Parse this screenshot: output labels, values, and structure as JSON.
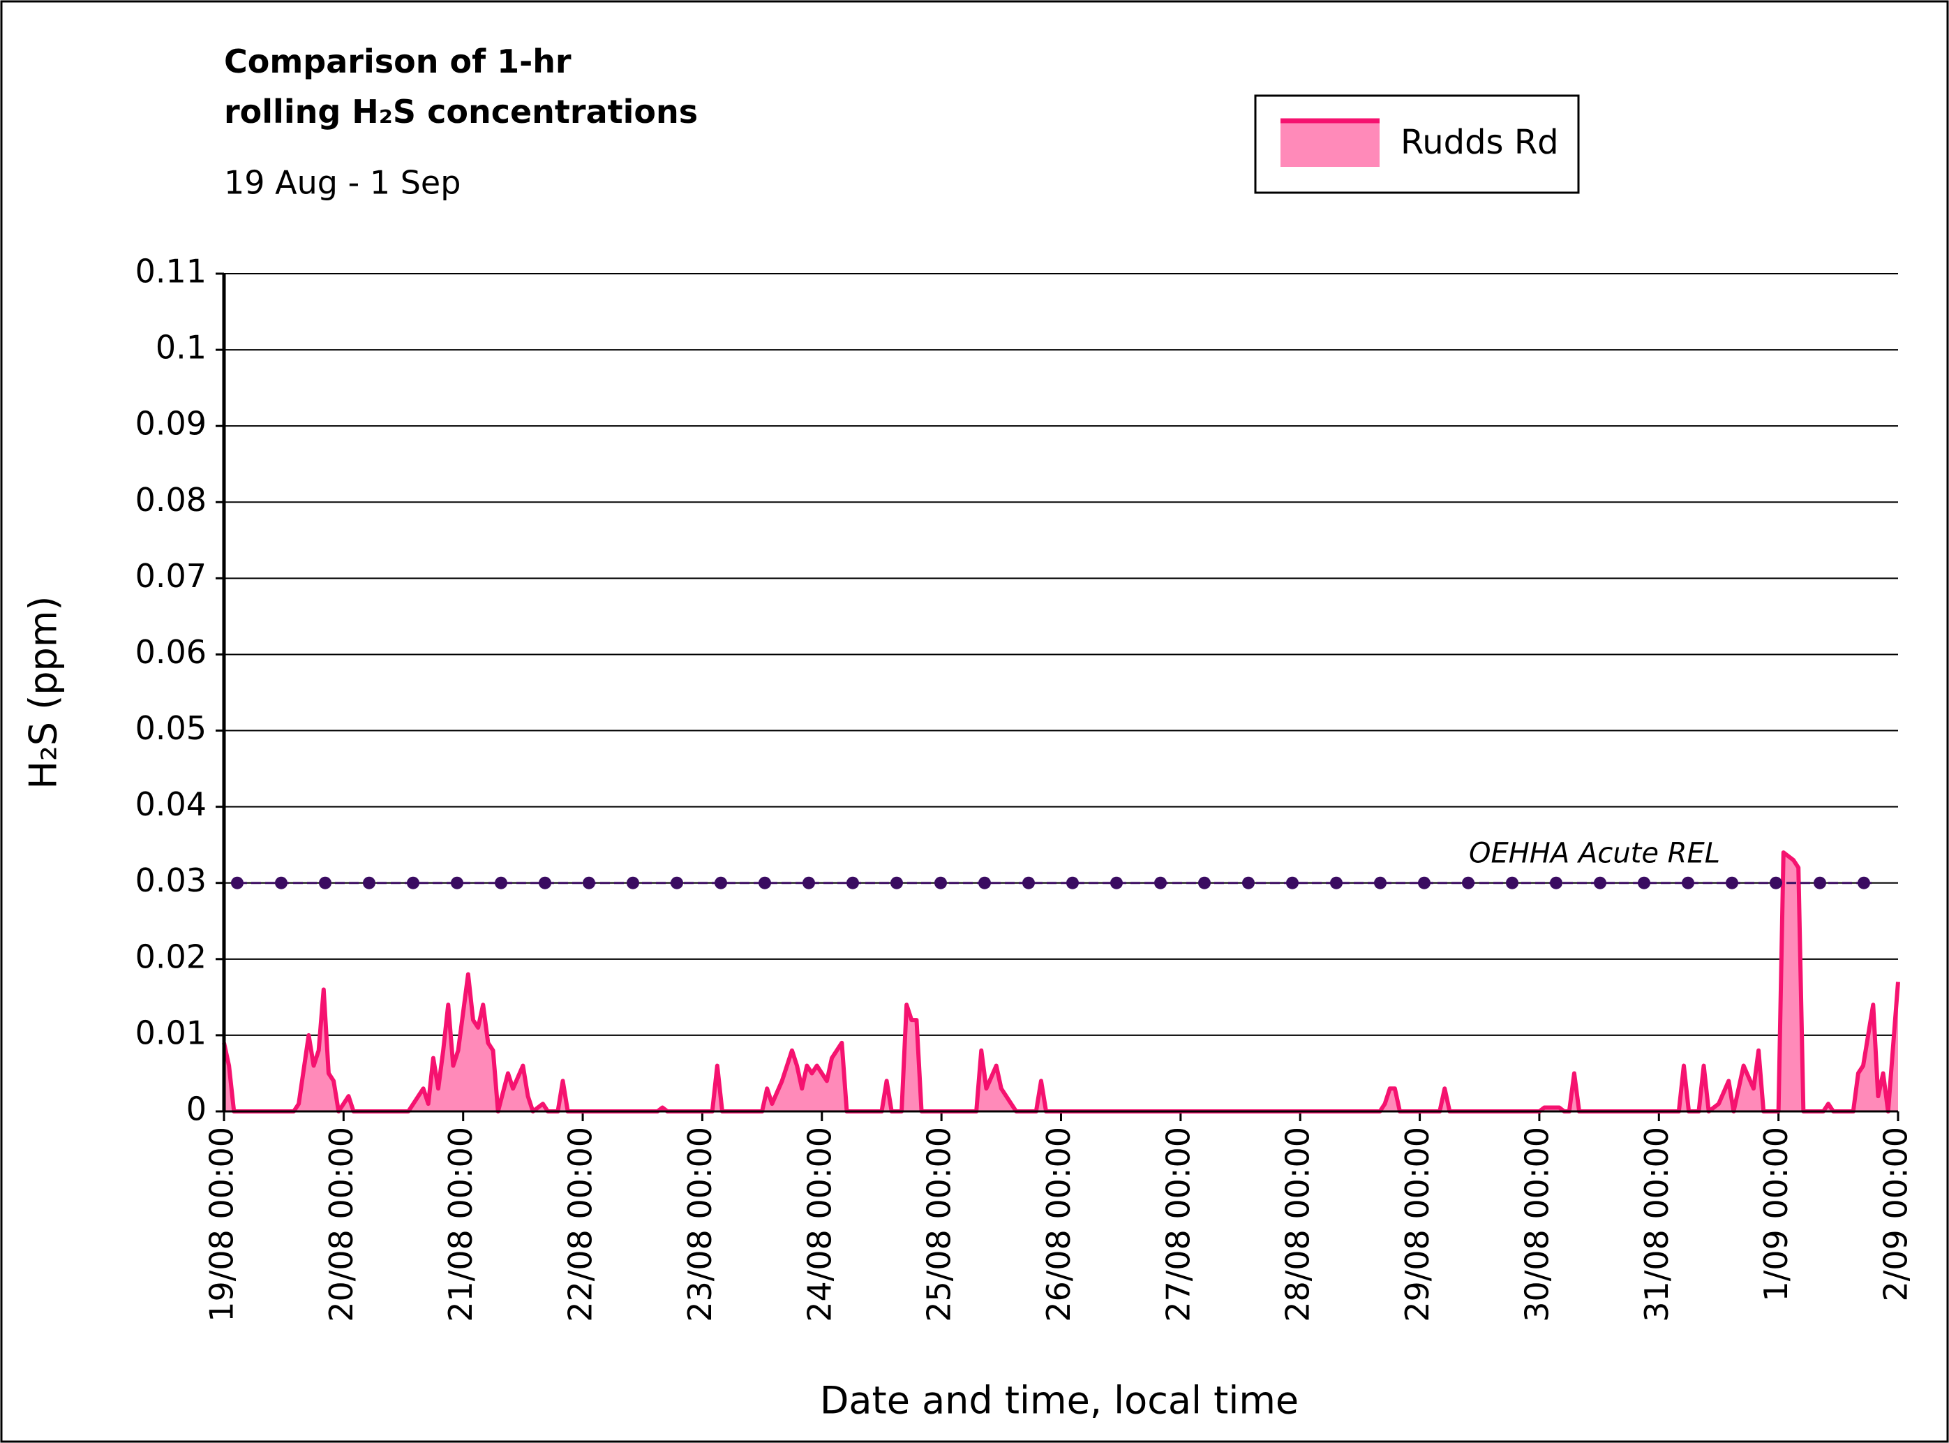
{
  "chart_data": {
    "type": "area",
    "title": "Comparison of 1-hr rolling H₂S concentrations",
    "subtitle": "19 Aug - 1 Sep",
    "x_label": "Date and time, local time",
    "y_label": "H₂S (ppm)",
    "xlim": [
      "19/08 00:00",
      "2/09 00:00"
    ],
    "xticks": [
      "19/08 00:00",
      "20/08 00:00",
      "21/08 00:00",
      "22/08 00:00",
      "23/08 00:00",
      "24/08 00:00",
      "25/08 00:00",
      "26/08 00:00",
      "27/08 00:00",
      "28/08 00:00",
      "29/08 00:00",
      "30/08 00:00",
      "31/08 00:00",
      "1/09 00:00",
      "2/09 00:00"
    ],
    "ylim": [
      0,
      0.11
    ],
    "yticks": [
      0,
      0.01,
      0.02,
      0.03,
      0.04,
      0.05,
      0.06,
      0.07,
      0.08,
      0.09,
      0.1,
      0.11
    ],
    "grid": true,
    "legend": "top-right",
    "x": [
      "19/08 00:00",
      "19/08 01:00",
      "19/08 02:00",
      "19/08 14:00",
      "19/08 15:00",
      "19/08 17:00",
      "19/08 18:00",
      "19/08 19:00",
      "19/08 20:00",
      "19/08 21:00",
      "19/08 22:00",
      "19/08 23:00",
      "20/08 01:00",
      "20/08 02:00",
      "20/08 13:00",
      "20/08 14:00",
      "20/08 16:00",
      "20/08 17:00",
      "20/08 18:00",
      "20/08 19:00",
      "20/08 20:00",
      "20/08 21:00",
      "20/08 22:00",
      "20/08 23:00",
      "21/08 01:00",
      "21/08 02:00",
      "21/08 03:00",
      "21/08 04:00",
      "21/08 05:00",
      "21/08 06:00",
      "21/08 07:00",
      "21/08 09:00",
      "21/08 10:00",
      "21/08 12:00",
      "21/08 13:00",
      "21/08 14:00",
      "21/08 16:00",
      "21/08 17:00",
      "21/08 19:00",
      "21/08 20:00",
      "21/08 21:00",
      "22/08 15:00",
      "22/08 16:00",
      "22/08 17:00",
      "23/08 02:00",
      "23/08 03:00",
      "23/08 04:00",
      "23/08 12:00",
      "23/08 13:00",
      "23/08 14:00",
      "23/08 16:00",
      "23/08 18:00",
      "23/08 19:00",
      "23/08 20:00",
      "23/08 21:00",
      "23/08 22:00",
      "23/08 23:00",
      "24/08 01:00",
      "24/08 02:00",
      "24/08 04:00",
      "24/08 05:00",
      "24/08 12:00",
      "24/08 13:00",
      "24/08 14:00",
      "24/08 16:00",
      "24/08 17:00",
      "24/08 18:00",
      "24/08 19:00",
      "24/08 20:00",
      "25/08 07:00",
      "25/08 08:00",
      "25/08 09:00",
      "25/08 11:00",
      "25/08 12:00",
      "25/08 14:00",
      "25/08 15:00",
      "25/08 19:00",
      "25/08 20:00",
      "25/08 21:00",
      "28/08 16:00",
      "28/08 17:00",
      "28/08 18:00",
      "28/08 19:00",
      "28/08 20:00",
      "29/08 04:00",
      "29/08 05:00",
      "29/08 06:00",
      "30/08 00:00",
      "30/08 01:00",
      "30/08 04:00",
      "30/08 05:00",
      "30/08 06:00",
      "30/08 07:00",
      "30/08 08:00",
      "31/08 04:00",
      "31/08 05:00",
      "31/08 06:00",
      "31/08 08:00",
      "31/08 09:00",
      "31/08 10:00",
      "31/08 12:00",
      "31/08 14:00",
      "31/08 15:00",
      "31/08 17:00",
      "31/08 19:00",
      "31/08 20:00",
      "31/08 21:00",
      "1/09 00:00",
      "1/09 01:00",
      "1/09 03:00",
      "1/09 04:00",
      "1/09 05:00",
      "1/09 09:00",
      "1/09 10:00",
      "1/09 11:00",
      "1/09 15:00",
      "1/09 16:00",
      "1/09 17:00",
      "1/09 19:00",
      "1/09 20:00",
      "1/09 21:00",
      "1/09 22:00",
      "2/09 00:00"
    ],
    "series": [
      {
        "name": "Rudds Rd",
        "color": "#f5126f",
        "fill_color": "#ff8ab9",
        "values": [
          0.009,
          0.006,
          0,
          0,
          0.001,
          0.01,
          0.006,
          0.008,
          0.016,
          0.005,
          0.004,
          0,
          0.002,
          0,
          0,
          0.001,
          0.003,
          0.001,
          0.007,
          0.003,
          0.008,
          0.014,
          0.006,
          0.008,
          0.018,
          0.012,
          0.011,
          0.014,
          0.009,
          0.008,
          0,
          0.005,
          0.003,
          0.006,
          0.002,
          0,
          0.001,
          0,
          0,
          0.004,
          0,
          0,
          0.0005,
          0,
          0,
          0.006,
          0,
          0,
          0.003,
          0.001,
          0.004,
          0.008,
          0.006,
          0.003,
          0.006,
          0.005,
          0.006,
          0.004,
          0.007,
          0.009,
          0,
          0,
          0.004,
          0,
          0,
          0.014,
          0.012,
          0.012,
          0,
          0,
          0.008,
          0.003,
          0.006,
          0.003,
          0.001,
          0,
          0,
          0.004,
          0,
          0,
          0.001,
          0.003,
          0.003,
          0,
          0,
          0.003,
          0,
          0,
          0.0005,
          0.0005,
          0,
          0,
          0.005,
          0,
          0,
          0.006,
          0,
          0,
          0.006,
          0,
          0.001,
          0.004,
          0,
          0.006,
          0.003,
          0.008,
          0,
          0,
          0.034,
          0.033,
          0.032,
          0,
          0,
          0.001,
          0,
          0,
          0.005,
          0.006,
          0.014,
          0.002,
          0.005,
          0,
          0.017
        ]
      }
    ],
    "reference": {
      "label": "OEHHA Acute REL",
      "value": 0.03,
      "color": "#3a0b61"
    }
  }
}
